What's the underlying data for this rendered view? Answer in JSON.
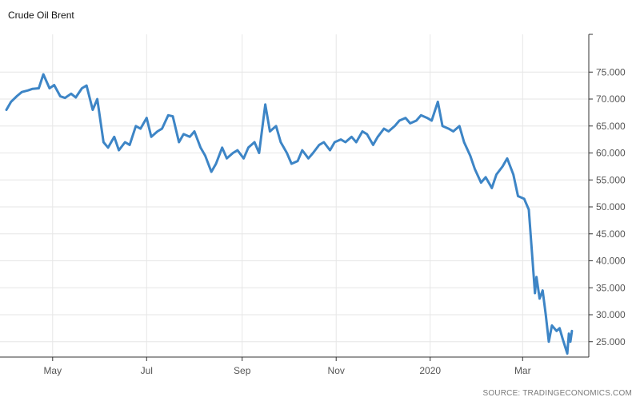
{
  "chart_data": {
    "type": "line",
    "title": "Crude Oil Brent",
    "source": "SOURCE: TRADINGECONOMICS.COM",
    "xlabel": "",
    "ylabel": "",
    "ylim": [
      20,
      80
    ],
    "grid": true,
    "line_color": "#3d85c6",
    "y_ticks": [
      "75.000",
      "70.000",
      "65.000",
      "60.000",
      "55.000",
      "50.000",
      "45.000",
      "40.000",
      "35.000",
      "30.000",
      "25.000"
    ],
    "y_tick_values": [
      75,
      70,
      65,
      60,
      55,
      50,
      45,
      40,
      35,
      30,
      25
    ],
    "x_ticks": [
      {
        "label": "May",
        "date": "2019-05-01"
      },
      {
        "label": "Jul",
        "date": "2019-07-01"
      },
      {
        "label": "Sep",
        "date": "2019-09-01"
      },
      {
        "label": "Nov",
        "date": "2019-11-01"
      },
      {
        "label": "2020",
        "date": "2020-01-01"
      },
      {
        "label": "Mar",
        "date": "2020-03-01"
      }
    ],
    "x_range": [
      "2019-04-01",
      "2020-04-01"
    ],
    "series": [
      {
        "points": [
          [
            "2019-04-01",
            68.0
          ],
          [
            "2019-04-04",
            69.5
          ],
          [
            "2019-04-08",
            70.6
          ],
          [
            "2019-04-11",
            71.3
          ],
          [
            "2019-04-15",
            71.6
          ],
          [
            "2019-04-18",
            71.9
          ],
          [
            "2019-04-22",
            72.0
          ],
          [
            "2019-04-25",
            74.6
          ],
          [
            "2019-04-29",
            72.0
          ],
          [
            "2019-05-02",
            72.6
          ],
          [
            "2019-05-06",
            70.5
          ],
          [
            "2019-05-09",
            70.2
          ],
          [
            "2019-05-13",
            71.0
          ],
          [
            "2019-05-16",
            70.3
          ],
          [
            "2019-05-20",
            72.0
          ],
          [
            "2019-05-23",
            72.5
          ],
          [
            "2019-05-27",
            68.0
          ],
          [
            "2019-05-30",
            70.0
          ],
          [
            "2019-06-03",
            62.0
          ],
          [
            "2019-06-06",
            61.0
          ],
          [
            "2019-06-10",
            63.0
          ],
          [
            "2019-06-13",
            60.5
          ],
          [
            "2019-06-17",
            62.0
          ],
          [
            "2019-06-20",
            61.5
          ],
          [
            "2019-06-24",
            65.0
          ],
          [
            "2019-06-27",
            64.5
          ],
          [
            "2019-07-01",
            66.5
          ],
          [
            "2019-07-04",
            63.0
          ],
          [
            "2019-07-08",
            64.0
          ],
          [
            "2019-07-11",
            64.5
          ],
          [
            "2019-07-15",
            67.0
          ],
          [
            "2019-07-18",
            66.8
          ],
          [
            "2019-07-22",
            62.0
          ],
          [
            "2019-07-25",
            63.5
          ],
          [
            "2019-07-29",
            63.0
          ],
          [
            "2019-08-01",
            64.0
          ],
          [
            "2019-08-05",
            61.0
          ],
          [
            "2019-08-08",
            59.5
          ],
          [
            "2019-08-12",
            56.5
          ],
          [
            "2019-08-15",
            58.0
          ],
          [
            "2019-08-19",
            61.0
          ],
          [
            "2019-08-22",
            59.0
          ],
          [
            "2019-08-26",
            60.0
          ],
          [
            "2019-08-29",
            60.5
          ],
          [
            "2019-09-02",
            59.0
          ],
          [
            "2019-09-05",
            61.0
          ],
          [
            "2019-09-09",
            62.0
          ],
          [
            "2019-09-12",
            60.0
          ],
          [
            "2019-09-16",
            69.0
          ],
          [
            "2019-09-19",
            64.0
          ],
          [
            "2019-09-23",
            65.0
          ],
          [
            "2019-09-26",
            62.0
          ],
          [
            "2019-09-30",
            60.0
          ],
          [
            "2019-10-03",
            58.0
          ],
          [
            "2019-10-07",
            58.5
          ],
          [
            "2019-10-10",
            60.5
          ],
          [
            "2019-10-14",
            59.0
          ],
          [
            "2019-10-17",
            60.0
          ],
          [
            "2019-10-21",
            61.5
          ],
          [
            "2019-10-24",
            62.0
          ],
          [
            "2019-10-28",
            60.5
          ],
          [
            "2019-10-31",
            62.0
          ],
          [
            "2019-11-04",
            62.5
          ],
          [
            "2019-11-07",
            62.0
          ],
          [
            "2019-11-11",
            63.0
          ],
          [
            "2019-11-14",
            62.0
          ],
          [
            "2019-11-18",
            64.0
          ],
          [
            "2019-11-21",
            63.5
          ],
          [
            "2019-11-25",
            61.5
          ],
          [
            "2019-11-28",
            63.0
          ],
          [
            "2019-12-02",
            64.5
          ],
          [
            "2019-12-05",
            64.0
          ],
          [
            "2019-12-09",
            65.0
          ],
          [
            "2019-12-12",
            66.0
          ],
          [
            "2019-12-16",
            66.5
          ],
          [
            "2019-12-19",
            65.5
          ],
          [
            "2019-12-23",
            66.0
          ],
          [
            "2019-12-26",
            67.0
          ],
          [
            "2019-12-30",
            66.5
          ],
          [
            "2020-01-02",
            66.0
          ],
          [
            "2020-01-06",
            69.5
          ],
          [
            "2020-01-09",
            65.0
          ],
          [
            "2020-01-13",
            64.5
          ],
          [
            "2020-01-16",
            64.0
          ],
          [
            "2020-01-20",
            65.0
          ],
          [
            "2020-01-23",
            62.0
          ],
          [
            "2020-01-27",
            59.5
          ],
          [
            "2020-01-30",
            57.0
          ],
          [
            "2020-02-03",
            54.5
          ],
          [
            "2020-02-06",
            55.5
          ],
          [
            "2020-02-10",
            53.5
          ],
          [
            "2020-02-13",
            56.0
          ],
          [
            "2020-02-17",
            57.5
          ],
          [
            "2020-02-20",
            59.0
          ],
          [
            "2020-02-24",
            56.0
          ],
          [
            "2020-02-27",
            52.0
          ],
          [
            "2020-03-02",
            51.5
          ],
          [
            "2020-03-05",
            49.5
          ],
          [
            "2020-03-09",
            34.0
          ],
          [
            "2020-03-10",
            37.0
          ],
          [
            "2020-03-12",
            33.0
          ],
          [
            "2020-03-14",
            34.5
          ],
          [
            "2020-03-16",
            30.0
          ],
          [
            "2020-03-18",
            25.0
          ],
          [
            "2020-03-20",
            28.0
          ],
          [
            "2020-03-23",
            27.0
          ],
          [
            "2020-03-25",
            27.5
          ],
          [
            "2020-03-27",
            25.5
          ],
          [
            "2020-03-30",
            22.8
          ],
          [
            "2020-03-31",
            26.5
          ],
          [
            "2020-04-01",
            25.0
          ],
          [
            "2020-04-02",
            27.0
          ]
        ]
      }
    ]
  }
}
